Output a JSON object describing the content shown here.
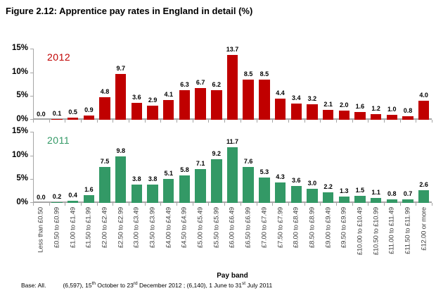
{
  "title": "Figure 2.12: Apprentice pay rates in England in detail (%)",
  "colors": {
    "series_2012": "#C00000",
    "series_2011": "#339966",
    "axis_line": "#A6A6A6",
    "category_label": "#404040",
    "title_text": "#000000"
  },
  "y_axis": {
    "ticks": [
      {
        "label": "15%",
        "value": 15
      },
      {
        "label": "10%",
        "value": 10
      },
      {
        "label": "5%",
        "value": 5
      },
      {
        "label": "0%",
        "value": 0
      }
    ]
  },
  "footer": {
    "base_label": "Base: All.",
    "segments": [
      {
        "text": "(6,597),  15"
      },
      {
        "sup": "th"
      },
      {
        "text": " October to 23"
      },
      {
        "sup": "rd"
      },
      {
        "text": " December 2012 ;  (6,140),  1 June to 31"
      },
      {
        "sup": "st"
      },
      {
        "text": " July 2011"
      }
    ]
  },
  "chart_data": {
    "type": "bar",
    "title": "Figure 2.12: Apprentice pay rates in England in detail (%)",
    "xlabel": "Pay band",
    "ylabel": "%",
    "ylim": [
      0,
      15
    ],
    "grid": false,
    "value_labels": true,
    "legend_position": "inside-top-left",
    "categories": [
      "Less than £0.50",
      "£0.50 to £0.99",
      "£1.00 to £1.49",
      "£1.50 to £1.99",
      "£2.00 to £2.49",
      "£2.50 to £2.99",
      "£3.00 to £3.49",
      "£3.50 to £3.99",
      "£4.00 to £4.49",
      "£4.50 to £4.99",
      "£5.00 to £5.49",
      "£5.50 to £5.99",
      "£6.00 to £6.49",
      "£6.50 to £6.99",
      "£7.00 to £7.49",
      "£7.50 to £7.99",
      "£8.00 to £8.49",
      "£8.50 to £8.99",
      "£9.00 to £9.49",
      "£9.50 to £9.99",
      "£10.00 to £10.49",
      "£10.50 to £10.99",
      "£11.00 to £11.49",
      "£11.50 to £11.99",
      "£12.00 or more"
    ],
    "series": [
      {
        "name": "2012",
        "color": "#C00000",
        "values": [
          0.0,
          0.1,
          0.5,
          0.9,
          4.8,
          9.7,
          3.6,
          2.9,
          4.1,
          6.3,
          6.7,
          6.2,
          13.7,
          8.5,
          8.5,
          4.4,
          3.4,
          3.2,
          2.1,
          2.0,
          1.6,
          1.2,
          1.0,
          0.8,
          4.0
        ]
      },
      {
        "name": "2011",
        "color": "#339966",
        "values": [
          0.0,
          0.2,
          0.4,
          1.6,
          7.5,
          9.8,
          3.8,
          3.8,
          5.1,
          5.8,
          7.1,
          9.2,
          11.7,
          7.6,
          5.3,
          4.3,
          3.6,
          3.0,
          2.2,
          1.3,
          1.5,
          1.1,
          0.8,
          0.7,
          2.6
        ]
      }
    ]
  }
}
